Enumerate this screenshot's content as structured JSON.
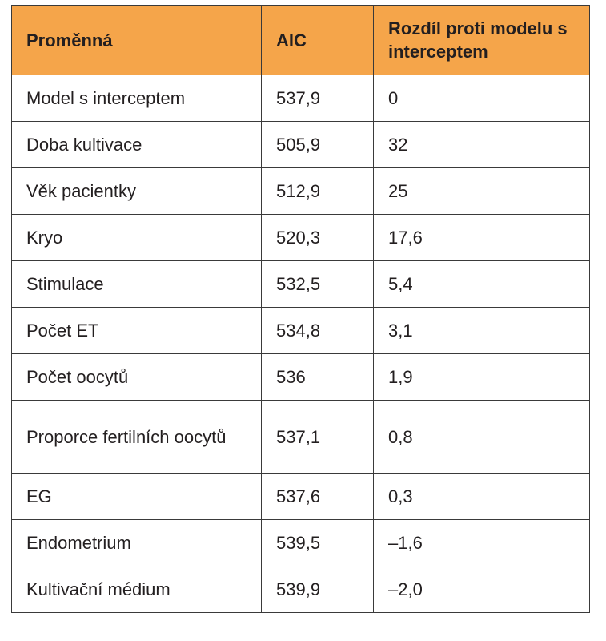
{
  "table": {
    "header_bg": "#f5a54a",
    "headers": [
      "Proměnná",
      "AIC",
      "Rozdíl proti modelu s interceptem"
    ],
    "rows": [
      [
        "Model s interceptem",
        "537,9",
        "0"
      ],
      [
        "Doba kultivace",
        "505,9",
        "32"
      ],
      [
        "Věk pacientky",
        "512,9",
        "25"
      ],
      [
        "Kryo",
        "520,3",
        "17,6"
      ],
      [
        "Stimulace",
        "532,5",
        "5,4"
      ],
      [
        "Počet ET",
        "534,8",
        "3,1"
      ],
      [
        "Počet oocytů",
        "536",
        "1,9"
      ],
      [
        "Proporce fertilních oocytů",
        "537,1",
        "0,8"
      ],
      [
        "EG",
        "537,6",
        "0,3"
      ],
      [
        "Endometrium",
        "539,5",
        "–1,6"
      ],
      [
        "Kultivační médium",
        "539,9",
        "–2,0"
      ]
    ]
  }
}
